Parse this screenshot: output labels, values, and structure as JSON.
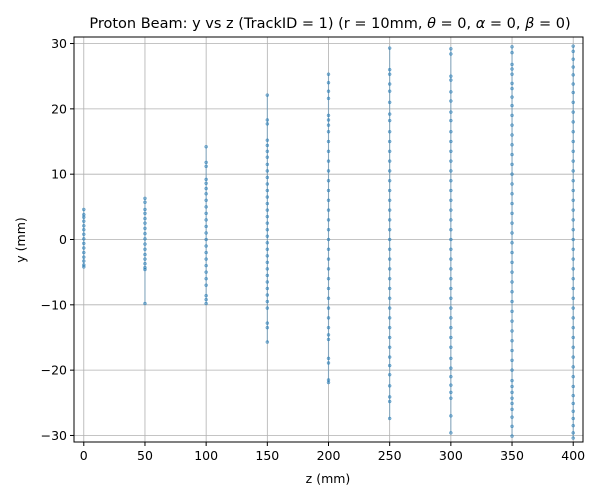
{
  "chart_data": {
    "type": "scatter",
    "title": "Proton Beam: y vs z (TrackID = 1) (r = 10mm, θ = 0, α = 0, β = 0)",
    "title_parts": {
      "prefix": "Proton Beam: y vs z (TrackID = 1) (r = 10mm, ",
      "theta": "θ",
      "alpha": "α",
      "beta": "β",
      "eq0": " = 0, ",
      "eq_last": " = 0)"
    },
    "xlabel": "z (mm)",
    "ylabel": "y (mm)",
    "xlim": [
      -8,
      408
    ],
    "ylim": [
      -31,
      31
    ],
    "xticks": [
      0,
      50,
      100,
      150,
      200,
      250,
      300,
      350,
      400
    ],
    "yticks": [
      -30,
      -20,
      -10,
      0,
      10,
      20,
      30
    ],
    "grid": true,
    "marker_color": "#1f77b4",
    "series": [
      {
        "points": [
          {
            "z": 0,
            "y": [
              4.6,
              3.8,
              3.4,
              2.8,
              2.1,
              1.5,
              0.8,
              0.1,
              -0.6,
              -1.3,
              -2.0,
              -2.7,
              -3.3,
              -3.9,
              -4.2
            ]
          },
          {
            "z": 50,
            "y": [
              6.3,
              5.7,
              4.6,
              4.0,
              3.2,
              2.5,
              1.7,
              0.9,
              0.1,
              -0.7,
              -1.5,
              -2.3,
              -3.0,
              -3.7,
              -4.3,
              -4.6,
              -9.8
            ]
          },
          {
            "z": 100,
            "y": [
              14.2,
              11.8,
              11.2,
              9.2,
              8.6,
              7.8,
              7.0,
              6.0,
              5.0,
              4.0,
              3.0,
              2.0,
              1.0,
              0.0,
              -1.0,
              -2.0,
              -3.0,
              -4.0,
              -5.0,
              -6.0,
              -7.0,
              -8.6,
              -9.2,
              -9.8
            ]
          },
          {
            "z": 150,
            "y": [
              22.1,
              18.3,
              17.7,
              15.2,
              14.4,
              13.5,
              12.6,
              11.5,
              10.5,
              9.5,
              8.5,
              7.5,
              6.5,
              5.5,
              4.5,
              3.5,
              2.5,
              1.5,
              0.5,
              -0.5,
              -1.5,
              -2.5,
              -3.5,
              -4.5,
              -5.5,
              -6.5,
              -7.5,
              -8.5,
              -9.5,
              -10.5,
              -12.8,
              -13.5,
              -15.7
            ]
          },
          {
            "z": 200,
            "y": [
              25.3,
              24.0,
              22.7,
              21.6,
              19.0,
              18.3,
              17.5,
              16.5,
              15.0,
              13.5,
              12.0,
              10.5,
              9.0,
              7.5,
              6.0,
              4.5,
              3.0,
              1.5,
              0.0,
              -1.5,
              -3.0,
              -4.5,
              -6.0,
              -7.5,
              -9.0,
              -10.5,
              -12.0,
              -13.5,
              -14.6,
              -15.3,
              -18.2,
              -18.9,
              -21.5,
              -21.9
            ]
          },
          {
            "z": 250,
            "y": [
              29.3,
              26.0,
              25.3,
              23.8,
              22.7,
              21.0,
              19.2,
              18.2,
              16.5,
              15.0,
              13.5,
              12.0,
              10.5,
              9.0,
              7.5,
              6.0,
              4.5,
              3.0,
              1.5,
              0.0,
              -1.5,
              -3.0,
              -4.5,
              -6.0,
              -7.5,
              -9.0,
              -10.5,
              -12.0,
              -13.5,
              -15.0,
              -16.5,
              -18.0,
              -19.3,
              -20.7,
              -22.4,
              -24.1,
              -24.8,
              -27.4
            ]
          },
          {
            "z": 300,
            "y": [
              29.2,
              28.4,
              25.0,
              24.4,
              22.6,
              21.2,
              19.5,
              18.2,
              16.5,
              15.0,
              13.5,
              12.0,
              10.5,
              9.0,
              7.5,
              6.0,
              4.5,
              3.0,
              1.5,
              0.0,
              -1.5,
              -3.0,
              -4.5,
              -6.0,
              -7.5,
              -9.0,
              -10.5,
              -12.0,
              -13.5,
              -15.0,
              -16.5,
              -18.2,
              -19.7,
              -21.0,
              -22.3,
              -23.4,
              -24.3,
              -27.0,
              -29.6
            ]
          },
          {
            "z": 350,
            "y": [
              29.5,
              28.6,
              26.8,
              26.1,
              25.3,
              23.9,
              23.1,
              21.8,
              20.5,
              19.0,
              17.5,
              16.0,
              14.5,
              13.0,
              11.5,
              10.0,
              8.5,
              7.0,
              5.5,
              4.0,
              2.5,
              1.0,
              -0.5,
              -2.0,
              -3.5,
              -5.0,
              -6.5,
              -8.0,
              -9.5,
              -11.0,
              -12.5,
              -14.0,
              -15.5,
              -17.0,
              -18.5,
              -20.0,
              -21.6,
              -22.5,
              -23.4,
              -24.3,
              -25.1,
              -26.0,
              -27.2,
              -28.6,
              -30.1
            ]
          },
          {
            "z": 400,
            "y": [
              29.6,
              28.8,
              27.6,
              26.4,
              25.2,
              23.8,
              22.5,
              21.0,
              19.5,
              18.0,
              16.5,
              15.0,
              13.5,
              12.0,
              10.5,
              9.0,
              7.5,
              6.0,
              4.5,
              3.0,
              1.5,
              0.0,
              -1.5,
              -3.0,
              -4.5,
              -6.0,
              -7.5,
              -9.0,
              -10.5,
              -12.0,
              -13.5,
              -15.0,
              -16.5,
              -18.0,
              -19.5,
              -21.0,
              -22.5,
              -23.9,
              -25.1,
              -26.3,
              -27.4,
              -28.5,
              -29.6,
              -30.4
            ]
          }
        ]
      }
    ]
  }
}
